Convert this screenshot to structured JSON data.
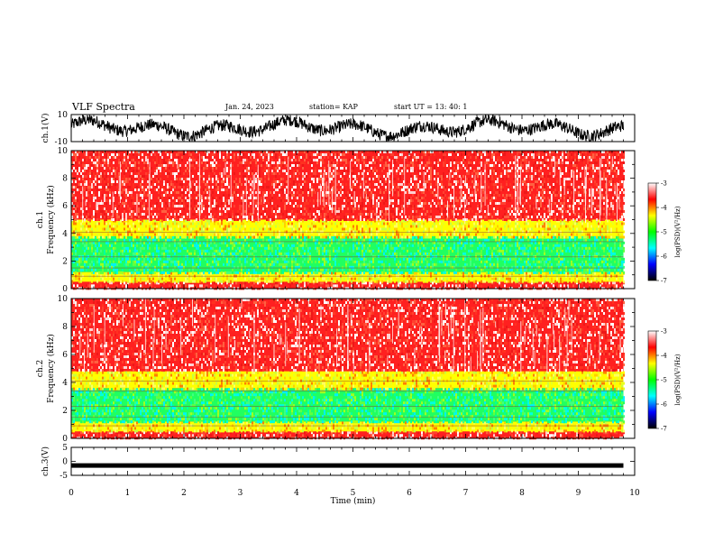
{
  "header": {
    "title": "VLF Spectra",
    "date": "Jan. 24, 2023",
    "station": "station= KAP",
    "start": "start  UT =   13: 40: 1"
  },
  "chart_data": [
    {
      "type": "line",
      "panel": "ch1-waveform",
      "ylabel": "ch.1(V)",
      "ylim": [
        -10,
        10
      ],
      "y_ticks": [
        "10",
        "-10"
      ],
      "x_range_min": [
        0,
        9.8
      ],
      "description_series": "noisy waveform oscillating roughly between -6 and 6 V"
    },
    {
      "type": "heatmap",
      "panel": "ch1-spectrogram",
      "ylabel": "ch.1\nFrequency (kHz)",
      "ylim": [
        0,
        10
      ],
      "y_ticks": [
        "0",
        "2",
        "4",
        "6",
        "8",
        "10"
      ],
      "x_range_min": [
        0,
        9.8
      ],
      "band_structure_khz": [
        {
          "from": 0,
          "to": 0.5,
          "level": "red"
        },
        {
          "from": 0.5,
          "to": 1.2,
          "level": "yellow"
        },
        {
          "from": 1.2,
          "to": 3.8,
          "level": "green"
        },
        {
          "from": 3.8,
          "to": 5.0,
          "level": "yellow"
        },
        {
          "from": 5.0,
          "to": 10,
          "level": "red"
        }
      ]
    },
    {
      "type": "heatmap",
      "panel": "ch2-spectrogram",
      "ylabel": "ch.2\nFrequency (kHz)",
      "ylim": [
        0,
        10
      ],
      "y_ticks": [
        "0",
        "2",
        "4",
        "6",
        "8",
        "10"
      ],
      "x_range_min": [
        0,
        9.8
      ],
      "band_structure_khz": [
        {
          "from": 0,
          "to": 0.5,
          "level": "red"
        },
        {
          "from": 0.5,
          "to": 1.2,
          "level": "yellow"
        },
        {
          "from": 1.2,
          "to": 3.6,
          "level": "green"
        },
        {
          "from": 3.6,
          "to": 4.8,
          "level": "yellow"
        },
        {
          "from": 4.8,
          "to": 10,
          "level": "red"
        }
      ]
    },
    {
      "type": "line",
      "panel": "ch3-waveform",
      "ylabel": "ch.3(V)",
      "ylim": [
        -5,
        5
      ],
      "y_ticks": [
        "5",
        "0",
        "-5"
      ],
      "x_range_min": [
        0,
        9.8
      ],
      "level": -1.5
    }
  ],
  "xaxis": {
    "label": "Time (min)",
    "ticks": [
      "0",
      "1",
      "2",
      "3",
      "4",
      "5",
      "6",
      "7",
      "8",
      "9",
      "10"
    ],
    "xlim": [
      0,
      10
    ]
  },
  "colorbar": {
    "label": "log(PSD)(V²/Hz)",
    "ticks": [
      "-3",
      "-4",
      "-5",
      "-6",
      "-7"
    ],
    "range": [
      -7,
      -3
    ],
    "colors": [
      "#000000",
      "#0000ff",
      "#00ffff",
      "#00ff00",
      "#ffff00",
      "#ff0000",
      "#ffffff"
    ]
  }
}
